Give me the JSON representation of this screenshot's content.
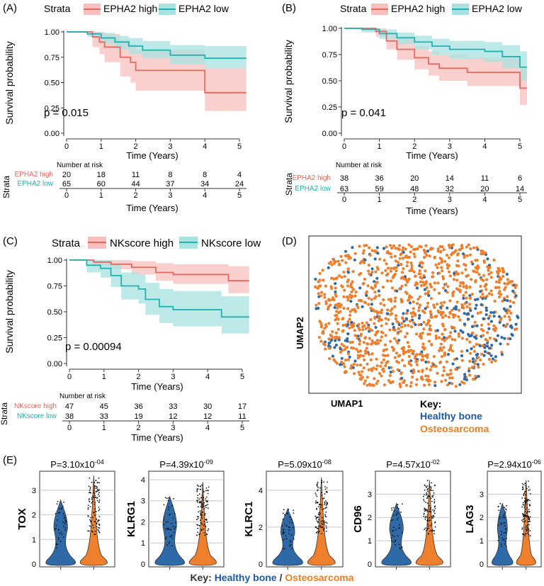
{
  "colors": {
    "red": "#e8675f",
    "teal": "#1fb3b0",
    "red_band": "#f7c0bd",
    "teal_band": "#a7e3e2",
    "blue": "#2f6aa8",
    "orange": "#ee7f2d",
    "key_blue": "#1e5aa8",
    "key_orange": "#f07f20"
  },
  "panelA": {
    "letter": "(A)",
    "strata_label": "Strata",
    "legend": [
      "EPHA2 high",
      "EPHA2 low"
    ],
    "p_value": "p = 0.015",
    "ylabel": "Survival probability",
    "xlabel": "Time (Years)",
    "yticks": [
      "0.00",
      "0.25",
      "0.50",
      "0.75",
      "1.00"
    ],
    "xticks": [
      "0",
      "1",
      "2",
      "3",
      "4",
      "5"
    ],
    "risk": {
      "title": "Number at risk",
      "strata_label": "Strata",
      "xlabel": "Time (Years)",
      "rows": [
        {
          "name": "EPHA2 high",
          "values": [
            "20",
            "18",
            "11",
            "8",
            "8",
            "4"
          ]
        },
        {
          "name": "EPHA2 low",
          "values": [
            "65",
            "60",
            "44",
            "37",
            "34",
            "24"
          ]
        }
      ]
    }
  },
  "panelB": {
    "letter": "(B)",
    "strata_label": "Strata",
    "legend": [
      "EPHA2 high",
      "EPHA2 low"
    ],
    "p_value": "p = 0.041",
    "ylabel": "Survival probability",
    "xlabel": "Time (Years)",
    "yticks": [
      "0.00",
      "0.25",
      "0.50",
      "0.75",
      "1.00"
    ],
    "xticks": [
      "0",
      "1",
      "2",
      "3",
      "4",
      "5"
    ],
    "risk": {
      "title": "Number at risk",
      "strata_label": "Strata",
      "xlabel": "Time (Years)",
      "rows": [
        {
          "name": "EPHA2 high",
          "values": [
            "38",
            "36",
            "20",
            "14",
            "11",
            "6"
          ]
        },
        {
          "name": "EPHA2 low",
          "values": [
            "63",
            "59",
            "48",
            "32",
            "20",
            "14"
          ]
        }
      ]
    }
  },
  "panelC": {
    "letter": "(C)",
    "strata_label": "Strata",
    "legend": [
      "NKscore high",
      "NKscore low"
    ],
    "p_value": "p = 0.00094",
    "ylabel": "Survival probability",
    "xlabel": "Time (Years)",
    "yticks": [
      "0.00",
      "0.25",
      "0.50",
      "0.75",
      "1.00"
    ],
    "xticks": [
      "0",
      "1",
      "2",
      "3",
      "4",
      "5"
    ],
    "risk": {
      "title": "Number at risk",
      "strata_label": "Strata",
      "xlabel": "Time (Years)",
      "rows": [
        {
          "name": "NKscore high",
          "values": [
            "47",
            "45",
            "36",
            "33",
            "30",
            "17"
          ]
        },
        {
          "name": "NKscore low",
          "values": [
            "38",
            "33",
            "19",
            "12",
            "12",
            "11"
          ]
        }
      ]
    }
  },
  "panelD": {
    "letter": "(D)",
    "xlabel": "UMAP1",
    "ylabel": "UMAP2",
    "key_title": "Key:",
    "key_items": [
      "Healthy bone",
      "Osteosarcoma"
    ]
  },
  "panelE": {
    "letter": "(E)",
    "key_title": "Key:",
    "key_items": [
      "Healthy bone",
      "Osteosarcoma"
    ],
    "key_sep": "/",
    "genes": [
      {
        "name": "TOX",
        "p_base": "P=3.10x10",
        "p_exp": "-04",
        "ymax": 3.6,
        "yticks": [
          "0",
          "1",
          "2",
          "3"
        ],
        "grid": [
          1,
          2,
          3
        ],
        "healthy_top": 2.6,
        "osteo_top": 3.6
      },
      {
        "name": "KLRG1",
        "p_base": "P=4.39x10",
        "p_exp": "-09",
        "ymax": 4.2,
        "yticks": [
          "0",
          "1",
          "2",
          "3",
          "4"
        ],
        "grid": [
          1,
          2,
          3,
          4
        ],
        "healthy_top": 3.2,
        "osteo_top": 3.9
      },
      {
        "name": "KLRC1",
        "p_base": "P=5.09x10",
        "p_exp": "-08",
        "ymax": 4.8,
        "yticks": [
          "0",
          "2",
          "4"
        ],
        "grid": [
          2,
          4
        ],
        "healthy_top": 3.0,
        "osteo_top": 4.7
      },
      {
        "name": "CD96",
        "p_base": "P=4.57x10",
        "p_exp": "-02",
        "ymax": 3.8,
        "yticks": [
          "0",
          "1",
          "2",
          "3"
        ],
        "grid": [
          1,
          2,
          3
        ],
        "healthy_top": 2.6,
        "osteo_top": 3.6
      },
      {
        "name": "LAG3",
        "p_base": "P=2.94x10",
        "p_exp": "-06",
        "ymax": 3.8,
        "yticks": [
          "0",
          "1",
          "2",
          "3"
        ],
        "grid": [
          1,
          2,
          3
        ],
        "healthy_top": 2.6,
        "osteo_top": 3.6
      }
    ]
  },
  "chart_data": [
    {
      "type": "line",
      "title": "(A)",
      "xlabel": "Time (Years)",
      "ylabel": "Survival probability",
      "xlim": [
        0,
        5.2
      ],
      "ylim": [
        0,
        1
      ],
      "series": [
        {
          "name": "EPHA2 high",
          "x": [
            0,
            0.75,
            0.95,
            1.1,
            1.55,
            1.85,
            2.0,
            4.0,
            5.2
          ],
          "y": [
            1.0,
            0.95,
            0.9,
            0.85,
            0.75,
            0.7,
            0.62,
            0.4,
            0.4
          ],
          "lower": [
            1.0,
            0.85,
            0.78,
            0.7,
            0.56,
            0.5,
            0.42,
            0.22,
            0.22
          ],
          "upper": [
            1.0,
            1.0,
            1.0,
            0.98,
            0.92,
            0.88,
            0.82,
            0.64,
            0.64
          ]
        },
        {
          "name": "EPHA2 low",
          "x": [
            0,
            0.6,
            1.0,
            1.4,
            1.8,
            2.2,
            3.0,
            4.0,
            5.2
          ],
          "y": [
            1.0,
            0.98,
            0.94,
            0.9,
            0.86,
            0.82,
            0.77,
            0.74,
            0.74
          ],
          "lower": [
            1.0,
            0.95,
            0.89,
            0.83,
            0.78,
            0.74,
            0.68,
            0.64,
            0.64
          ],
          "upper": [
            1.0,
            1.0,
            0.99,
            0.96,
            0.94,
            0.91,
            0.87,
            0.86,
            0.86
          ]
        }
      ]
    },
    {
      "type": "line",
      "title": "(B)",
      "xlabel": "Time (Years)",
      "ylabel": "Survival probability",
      "xlim": [
        0,
        5.2
      ],
      "ylim": [
        0,
        1
      ],
      "series": [
        {
          "name": "EPHA2 high",
          "x": [
            0,
            0.9,
            1.2,
            1.5,
            2.0,
            2.4,
            2.7,
            3.5,
            4.5,
            5.0,
            5.2
          ],
          "y": [
            1.0,
            0.97,
            0.88,
            0.8,
            0.72,
            0.66,
            0.62,
            0.58,
            0.58,
            0.43,
            0.43
          ],
          "lower": [
            1.0,
            0.92,
            0.8,
            0.7,
            0.61,
            0.55,
            0.5,
            0.45,
            0.45,
            0.27,
            0.27
          ],
          "upper": [
            1.0,
            1.0,
            0.96,
            0.9,
            0.83,
            0.78,
            0.75,
            0.72,
            0.72,
            0.62,
            0.62
          ]
        },
        {
          "name": "EPHA2 low",
          "x": [
            0,
            0.5,
            1.0,
            1.5,
            2.0,
            2.5,
            3.0,
            4.0,
            4.5,
            5.0,
            5.2
          ],
          "y": [
            1.0,
            0.99,
            0.95,
            0.91,
            0.87,
            0.83,
            0.8,
            0.78,
            0.73,
            0.63,
            0.63
          ],
          "lower": [
            1.0,
            0.96,
            0.9,
            0.85,
            0.8,
            0.75,
            0.71,
            0.68,
            0.62,
            0.5,
            0.5
          ],
          "upper": [
            1.0,
            1.0,
            0.99,
            0.96,
            0.93,
            0.9,
            0.88,
            0.87,
            0.84,
            0.78,
            0.78
          ]
        }
      ]
    },
    {
      "type": "line",
      "title": "(C)",
      "xlabel": "Time (Years)",
      "ylabel": "Survival probability",
      "xlim": [
        0,
        5.2
      ],
      "ylim": [
        0,
        1
      ],
      "series": [
        {
          "name": "NKscore high",
          "x": [
            0,
            0.7,
            1.2,
            1.8,
            2.5,
            3.0,
            4.0,
            4.6,
            5.2
          ],
          "y": [
            1.0,
            0.98,
            0.96,
            0.93,
            0.88,
            0.86,
            0.86,
            0.8,
            0.8
          ],
          "lower": [
            1.0,
            0.94,
            0.91,
            0.86,
            0.8,
            0.77,
            0.77,
            0.68,
            0.68
          ],
          "upper": [
            1.0,
            1.0,
            1.0,
            0.99,
            0.97,
            0.96,
            0.96,
            0.94,
            0.94
          ]
        },
        {
          "name": "NKscore low",
          "x": [
            0,
            0.5,
            0.9,
            1.2,
            1.5,
            2.0,
            2.2,
            2.6,
            3.0,
            3.6,
            4.4,
            5.2
          ],
          "y": [
            1.0,
            0.95,
            0.92,
            0.85,
            0.75,
            0.72,
            0.62,
            0.55,
            0.52,
            0.52,
            0.45,
            0.45
          ],
          "lower": [
            1.0,
            0.88,
            0.83,
            0.74,
            0.62,
            0.58,
            0.47,
            0.39,
            0.36,
            0.36,
            0.29,
            0.29
          ],
          "upper": [
            1.0,
            1.0,
            1.0,
            0.96,
            0.88,
            0.86,
            0.78,
            0.72,
            0.7,
            0.7,
            0.65,
            0.65
          ]
        }
      ]
    },
    {
      "type": "scatter",
      "title": "(D)",
      "xlabel": "UMAP1",
      "ylabel": "UMAP2",
      "legend": "bottom-right",
      "series": [
        {
          "name": "Healthy bone"
        },
        {
          "name": "Osteosarcoma"
        }
      ]
    },
    {
      "type": "violin",
      "title": "(E)",
      "categories": [
        "TOX",
        "KLRG1",
        "KLRC1",
        "CD96",
        "LAG3"
      ],
      "series": [
        {
          "name": "Healthy bone"
        },
        {
          "name": "Osteosarcoma"
        }
      ]
    }
  ]
}
